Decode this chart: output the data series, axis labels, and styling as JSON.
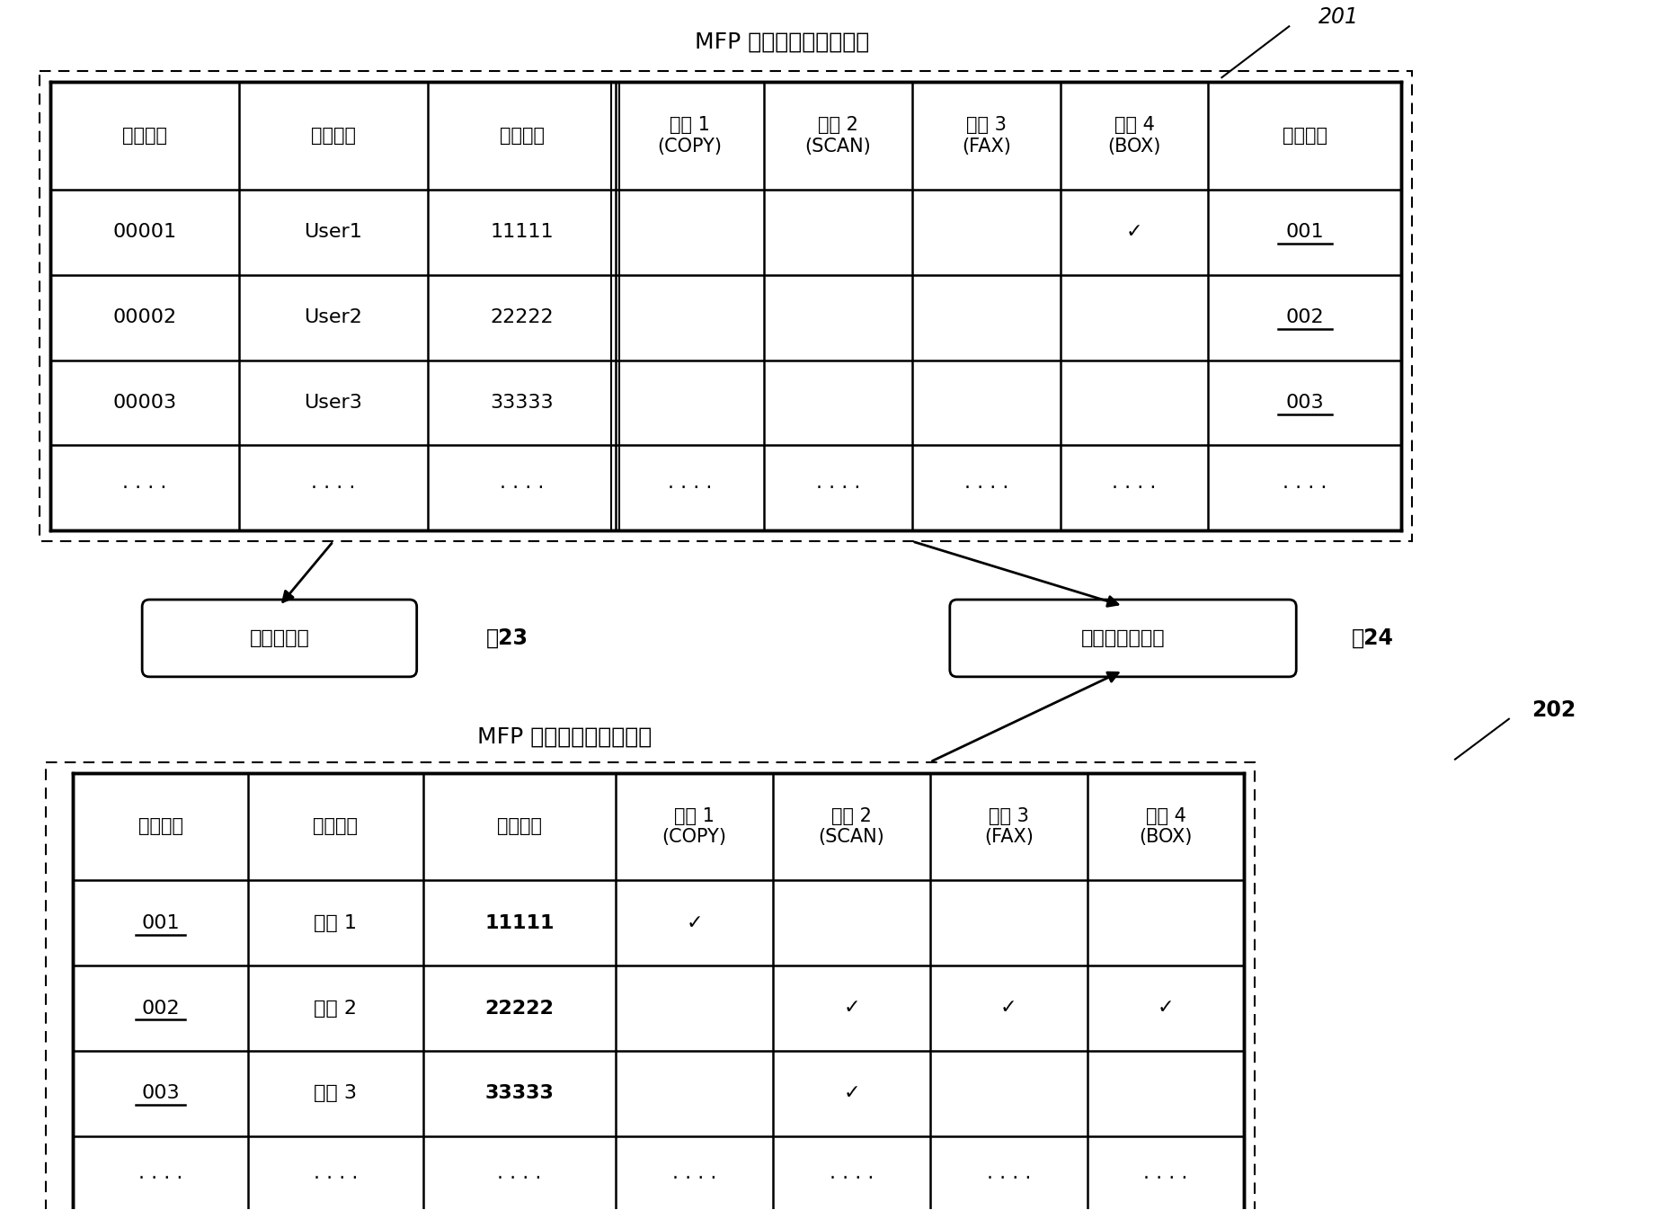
{
  "title1": "MFP 的内部用户管理数据",
  "title2": "MFP 的内部用户管理数据",
  "label_201": "201",
  "label_202": "202",
  "label_23": "认证数据库",
  "label_23_ref": "～23",
  "label_24": "任务管理数据库",
  "label_24_ref": "～24",
  "table1_headers": [
    "用户号码",
    "用户名称",
    "用户密码",
    "任务 1\n(COPY)",
    "任务 2\n(SCAN)",
    "任务 3\n(FAX)",
    "任务 4\n(BOX)",
    "部门号码"
  ],
  "table1_rows": [
    [
      "00001",
      "User1",
      "11111",
      "",
      "",
      "",
      "✓",
      "001"
    ],
    [
      "00002",
      "User2",
      "22222",
      "",
      "",
      "",
      "",
      "002"
    ],
    [
      "00003",
      "User3",
      "33333",
      "",
      "",
      "",
      "",
      "003"
    ],
    [
      "· · · ·",
      "· · · ·",
      "· · · ·",
      "· · · ·",
      "· · · ·",
      "· · · ·",
      "· · · ·",
      "· · · ·"
    ]
  ],
  "table2_headers": [
    "用户号码",
    "用户名称",
    "部门代码",
    "任务 1\n(COPY)",
    "任务 2\n(SCAN)",
    "任务 3\n(FAX)",
    "任务 4\n(BOX)"
  ],
  "table2_rows": [
    [
      "001",
      "部门 1",
      "11111",
      "✓",
      "",
      "",
      ""
    ],
    [
      "002",
      "部门 2",
      "22222",
      "",
      "✓",
      "✓",
      "✓"
    ],
    [
      "003",
      "部门 3",
      "33333",
      "",
      "✓",
      "",
      ""
    ],
    [
      "· · · ·",
      "· · · ·",
      "· · · ·",
      "· · · ·",
      "· · · ·",
      "· · · ·",
      "· · · ·"
    ]
  ],
  "bg_color": "#ffffff"
}
